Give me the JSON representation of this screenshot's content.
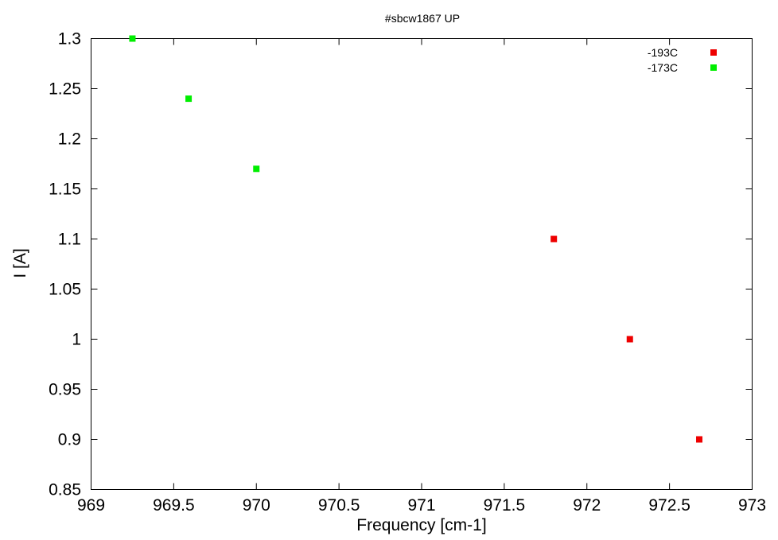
{
  "chart_data": {
    "type": "scatter",
    "title": "#sbcw1867 UP",
    "xlabel": "Frequency [cm-1]",
    "ylabel": "I [A]",
    "xlim": [
      969,
      973
    ],
    "ylim": [
      0.85,
      1.3
    ],
    "xticks": [
      "969",
      "969.5",
      "970",
      "970.5",
      "971",
      "971.5",
      "972",
      "972.5",
      "973"
    ],
    "yticks": [
      "0.85",
      "0.9",
      "0.95",
      "1",
      "1.05",
      "1.1",
      "1.15",
      "1.2",
      "1.25",
      "1.3"
    ],
    "grid": false,
    "legend_position": "top-right",
    "series": [
      {
        "name": "-193C",
        "color": "#ee0000",
        "points": [
          {
            "x": 971.8,
            "y": 1.1
          },
          {
            "x": 972.26,
            "y": 1.0
          },
          {
            "x": 972.68,
            "y": 0.9
          }
        ]
      },
      {
        "name": "-173C",
        "color": "#00ee00",
        "points": [
          {
            "x": 969.25,
            "y": 1.3
          },
          {
            "x": 969.59,
            "y": 1.24
          },
          {
            "x": 970.0,
            "y": 1.17
          }
        ]
      }
    ]
  }
}
